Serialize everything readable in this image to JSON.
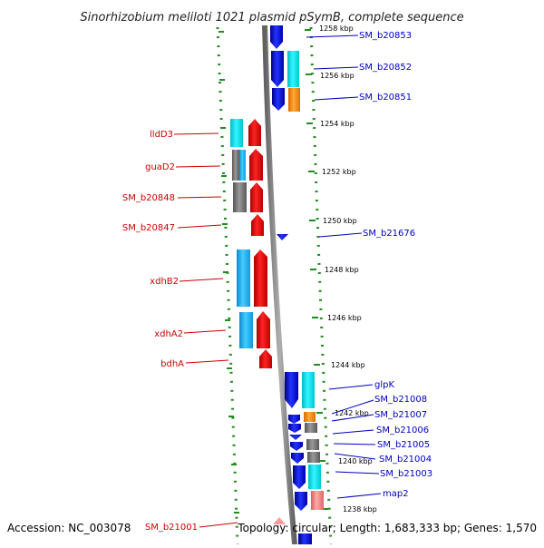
{
  "title": "Sinorhizobium meliloti 1021 plasmid pSymB, complete sequence",
  "footer": {
    "accession": "Accession: NC_003078",
    "info": "Topology: circular; Length: 1,683,333 bp; Genes: 1,570"
  },
  "ticks": [
    "1258 kbp",
    "1256 kbp",
    "1254 kbp",
    "1252 kbp",
    "1250 kbp",
    "1248 kbp",
    "1246 kbp",
    "1244 kbp",
    "1242 kbp",
    "1240 kbp",
    "1238 kbp"
  ],
  "left_labels": [
    "lldD3",
    "guaD2",
    "SM_b20848",
    "SM_b20847",
    "xdhB2",
    "xdhA2",
    "bdhA",
    "SM_b21001"
  ],
  "right_labels": [
    "SM_b20853",
    "SM_b20852",
    "SM_b20851",
    "SM_b21676",
    "glpK",
    "SM_b21008",
    "SM_b21007",
    "SM_b21006",
    "SM_b21005",
    "SM_b21004",
    "SM_b21003",
    "map2"
  ],
  "colors": {
    "forward_cds": "#0000ee",
    "reverse_cds": "#ee0000",
    "cog_cyan": "#00e5ee",
    "cog_lightblue": "#22aaee",
    "cog_orange": "#ff8800",
    "cog_gray": "#707070",
    "cog_salmon": "#f08080",
    "backbone": "#808080",
    "ring_dots": "#228b22"
  }
}
